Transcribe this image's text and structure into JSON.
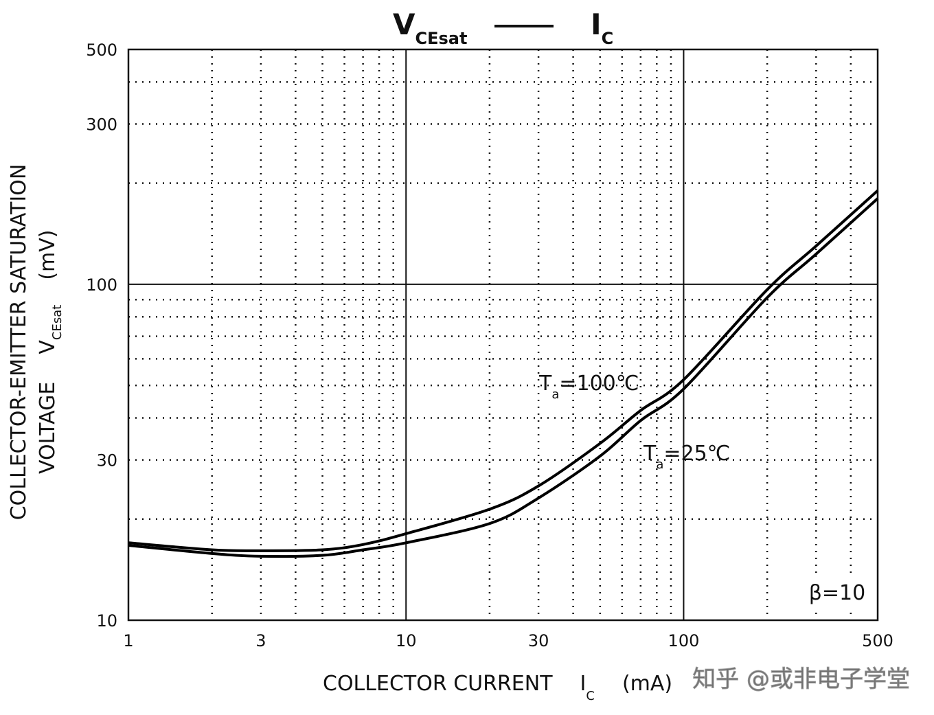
{
  "chart_data": {
    "type": "line",
    "title": {
      "y_symbol": "V",
      "y_subscript": "CEsat",
      "x_symbol": "I",
      "x_subscript": "C"
    },
    "xlabel": {
      "text": "COLLECTOR CURRENT",
      "symbol": "I",
      "subscript": "C",
      "unit": "(mA)"
    },
    "ylabel": {
      "line1": "COLLECTOR-EMITTER SATURATION",
      "text": "VOLTAGE",
      "symbol": "V",
      "subscript": "CEsat",
      "unit": "(mV)"
    },
    "x": [
      1,
      2,
      3,
      5,
      7,
      10,
      20,
      30,
      50,
      70,
      100,
      200,
      300,
      500
    ],
    "series": [
      {
        "label": {
          "symbol": "T",
          "subscript": "a",
          "text": "=100℃"
        },
        "color": "#000000",
        "values": [
          17.0,
          16.2,
          16.1,
          16.2,
          16.8,
          18.1,
          21.4,
          25.1,
          33.6,
          42.1,
          52.0,
          96.4,
          130,
          190
        ]
      },
      {
        "label": {
          "symbol": "T",
          "subscript": "a",
          "text": "=25℃"
        },
        "color": "#000000",
        "values": [
          16.7,
          15.8,
          15.5,
          15.6,
          16.2,
          17.0,
          19.4,
          23.1,
          30.8,
          39.3,
          48.8,
          91.3,
          123,
          180
        ]
      }
    ],
    "xlim": [
      1,
      500
    ],
    "ylim": [
      10,
      500
    ],
    "xticks": [
      1,
      3,
      10,
      30,
      100,
      500
    ],
    "yticks": [
      10,
      30,
      100,
      300,
      500
    ],
    "x_major_grid": [
      10,
      100
    ],
    "x_minor_grid": [
      2,
      3,
      4,
      5,
      6,
      7,
      8,
      9,
      20,
      30,
      40,
      50,
      60,
      70,
      80,
      90,
      200,
      300,
      400
    ],
    "y_major_grid": [
      100
    ],
    "y_minor_grid": [
      20,
      30,
      40,
      50,
      60,
      70,
      80,
      90,
      200,
      300,
      400
    ],
    "xscale": "log",
    "yscale": "log",
    "annotation": "β=10",
    "watermark": "知乎 @或非电子学堂"
  }
}
